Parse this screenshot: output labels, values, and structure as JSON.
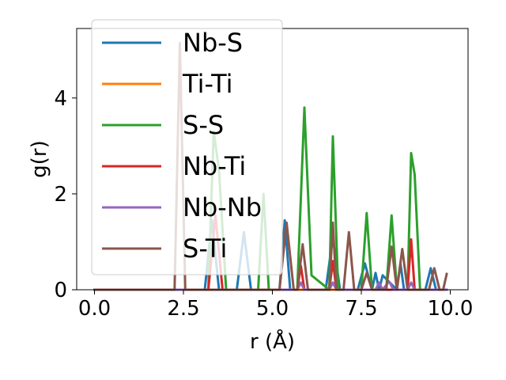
{
  "chart_data": {
    "type": "line",
    "xlabel": "r (Å)",
    "ylabel": "g(r)",
    "xlim": [
      -0.5,
      10.5
    ],
    "ylim": [
      0,
      5.45
    ],
    "xticks": [
      0.0,
      2.5,
      5.0,
      7.5,
      10.0
    ],
    "xtick_labels": [
      "0.0",
      "2.5",
      "5.0",
      "7.5",
      "10.0"
    ],
    "yticks": [
      0,
      2,
      4
    ],
    "ytick_labels": [
      "0",
      "2",
      "4"
    ],
    "grid": false,
    "legend_position": "upper-left",
    "series": [
      {
        "name": "Nb-S",
        "color": "#1f77b4",
        "x": [
          0,
          2.3,
          3.1,
          3.3,
          3.5,
          4.0,
          4.2,
          4.4,
          5.2,
          5.35,
          5.5,
          6.5,
          6.7,
          6.9,
          7.4,
          7.6,
          7.8,
          7.9,
          8.0,
          8.1,
          8.5,
          8.6,
          8.7,
          9.3,
          9.45,
          9.6,
          9.9
        ],
        "y": [
          0,
          0,
          0,
          1.45,
          0,
          0,
          1.2,
          0,
          0,
          1.45,
          0,
          0,
          1.1,
          0,
          0,
          0.55,
          0,
          0.35,
          0,
          0.3,
          0,
          0.55,
          0,
          0,
          0.45,
          0,
          0
        ]
      },
      {
        "name": "Ti-Ti",
        "color": "#ff7f0e",
        "x": [
          0,
          9.9
        ],
        "y": [
          0,
          0
        ]
      },
      {
        "name": "S-S",
        "color": "#2ca02c",
        "x": [
          0,
          3.2,
          3.35,
          3.5,
          3.7,
          4.6,
          4.75,
          4.9,
          5.7,
          5.9,
          6.1,
          6.6,
          6.7,
          6.85,
          7.5,
          7.65,
          7.8,
          8.2,
          8.35,
          8.5,
          8.8,
          8.9,
          9.0,
          9.15,
          9.9
        ],
        "y": [
          0,
          0,
          3.3,
          2.5,
          0,
          0,
          2.0,
          0,
          0,
          3.8,
          0.3,
          0,
          3.2,
          0,
          0,
          1.6,
          0,
          0,
          1.55,
          0,
          0,
          2.85,
          2.4,
          0,
          0
        ]
      },
      {
        "name": "Nb-Ti",
        "color": "#d62728",
        "x": [
          0,
          2.3,
          3.2,
          3.4,
          3.6,
          5.7,
          5.8,
          5.9,
          6.6,
          6.7,
          6.8,
          8.8,
          8.9,
          9.0,
          9.9
        ],
        "y": [
          0,
          0,
          0,
          1.55,
          0,
          0,
          0.5,
          0,
          0,
          0.6,
          0,
          0,
          1.05,
          0,
          0
        ]
      },
      {
        "name": "Nb-Nb",
        "color": "#9467bd",
        "x": [
          0,
          5.7,
          5.8,
          5.9,
          6.6,
          6.7,
          6.8,
          7.9,
          8.0,
          8.1,
          8.25,
          8.3,
          8.4,
          8.8,
          8.9,
          9.0,
          9.9
        ],
        "y": [
          0,
          0,
          0.15,
          0,
          0,
          0.15,
          0,
          0,
          0.15,
          0,
          0.15,
          0.15,
          0,
          0,
          0.15,
          0,
          0
        ]
      },
      {
        "name": "S-Ti",
        "color": "#8c564b",
        "x": [
          0,
          2.25,
          2.4,
          2.55,
          5.2,
          5.4,
          5.6,
          5.7,
          5.85,
          6.0,
          6.6,
          6.7,
          6.8,
          7.0,
          7.15,
          7.3,
          7.5,
          7.65,
          7.8,
          8.2,
          8.35,
          8.5,
          8.5,
          8.65,
          8.8,
          9.4,
          9.55,
          9.7,
          9.8,
          9.9
        ],
        "y": [
          0,
          0,
          5.15,
          0,
          0,
          1.4,
          0,
          0,
          0.95,
          0,
          0,
          1.4,
          0,
          0,
          1.2,
          0,
          0,
          0.35,
          0,
          0,
          0.9,
          0,
          0,
          0.85,
          0,
          0,
          0.45,
          0,
          0,
          0.33
        ]
      }
    ]
  }
}
